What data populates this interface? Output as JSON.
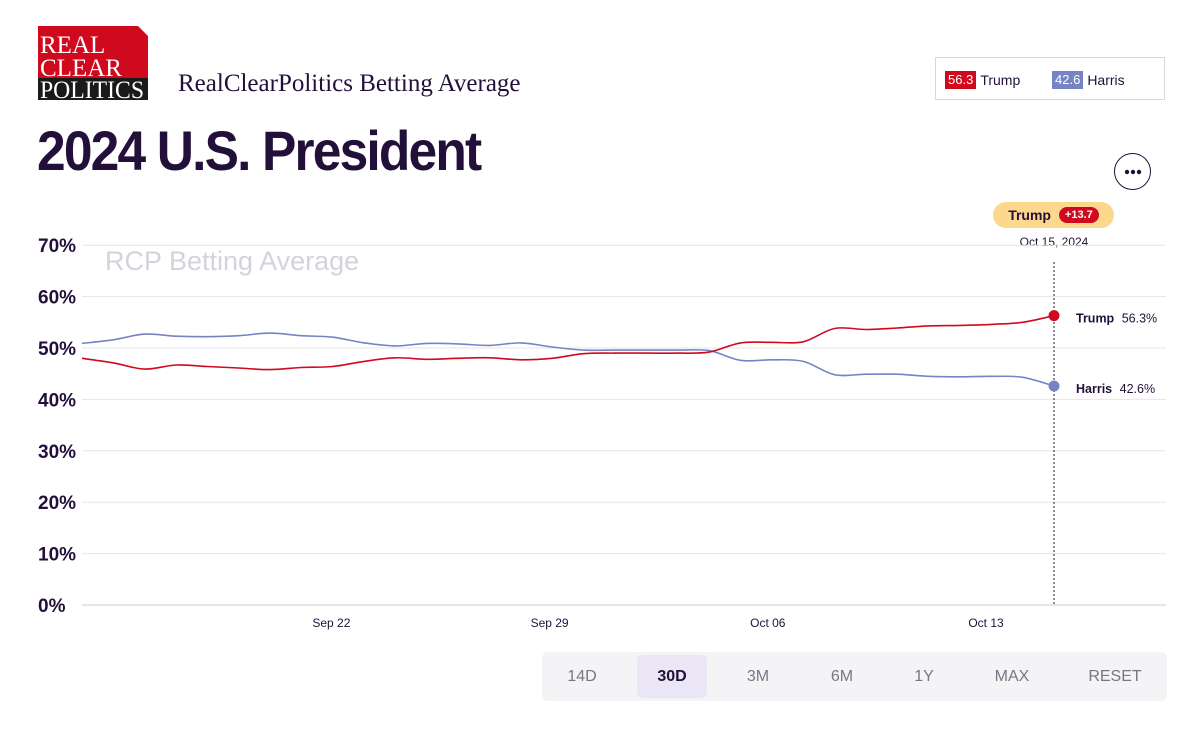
{
  "header": {
    "logo_lines": [
      "REAL",
      "CLEAR",
      "POLITICS"
    ],
    "subtitle": "RealClearPolitics Betting Average",
    "title": "2024 U.S. President"
  },
  "legend": {
    "trump": {
      "value": "56.3",
      "name": "Trump",
      "color": "#d00a1e"
    },
    "harris": {
      "value": "42.6",
      "name": "Harris",
      "color": "#7683c4"
    }
  },
  "more_icon": "ellipsis-icon",
  "tooltip": {
    "leader": "Trump",
    "spread": "+13.7",
    "date": "Oct 15, 2024"
  },
  "watermark": "RCP Betting Average",
  "chart_data": {
    "type": "line",
    "title": "2024 U.S. President",
    "subtitle": "RealClearPolitics Betting Average",
    "y_unit": "%",
    "ylim": [
      0,
      70
    ],
    "y_ticks": [
      "0%",
      "10%",
      "20%",
      "30%",
      "40%",
      "50%",
      "60%",
      "70%"
    ],
    "x_tick_labels": [
      "Sep 22",
      "Sep 29",
      "Oct 06",
      "Oct 13"
    ],
    "x": [
      "2024-09-14",
      "2024-09-15",
      "2024-09-16",
      "2024-09-17",
      "2024-09-18",
      "2024-09-19",
      "2024-09-20",
      "2024-09-21",
      "2024-09-22",
      "2024-09-23",
      "2024-09-24",
      "2024-09-25",
      "2024-09-26",
      "2024-09-27",
      "2024-09-28",
      "2024-09-29",
      "2024-09-30",
      "2024-10-01",
      "2024-10-02",
      "2024-10-03",
      "2024-10-04",
      "2024-10-05",
      "2024-10-06",
      "2024-10-07",
      "2024-10-08",
      "2024-10-09",
      "2024-10-10",
      "2024-10-11",
      "2024-10-12",
      "2024-10-13",
      "2024-10-14",
      "2024-10-15"
    ],
    "series": [
      {
        "name": "Trump",
        "color": "#d00a1e",
        "values": [
          48.0,
          47.1,
          45.9,
          46.7,
          46.4,
          46.1,
          45.8,
          46.2,
          46.4,
          47.4,
          48.1,
          47.8,
          48.0,
          48.1,
          47.7,
          48.0,
          48.9,
          49.0,
          49.0,
          49.0,
          49.2,
          51.0,
          51.1,
          51.2,
          53.8,
          53.6,
          53.9,
          54.3,
          54.4,
          54.6,
          55.0,
          56.3
        ]
      },
      {
        "name": "Harris",
        "color": "#7683c4",
        "values": [
          50.9,
          51.6,
          52.7,
          52.3,
          52.2,
          52.4,
          52.9,
          52.4,
          52.1,
          51.0,
          50.4,
          50.9,
          50.8,
          50.5,
          51.0,
          50.2,
          49.6,
          49.6,
          49.6,
          49.6,
          49.5,
          47.6,
          47.7,
          47.4,
          44.8,
          44.9,
          44.9,
          44.5,
          44.4,
          44.5,
          44.3,
          42.6
        ]
      }
    ],
    "end_labels": {
      "trump": {
        "name": "Trump",
        "value": "56.3%"
      },
      "harris": {
        "name": "Harris",
        "value": "42.6%"
      }
    },
    "grid": true,
    "legend_position": "top-right"
  },
  "range_buttons": [
    {
      "label": "14D",
      "active": false
    },
    {
      "label": "30D",
      "active": true
    },
    {
      "label": "3M",
      "active": false
    },
    {
      "label": "6M",
      "active": false
    },
    {
      "label": "1Y",
      "active": false
    },
    {
      "label": "MAX",
      "active": false
    },
    {
      "label": "RESET",
      "active": false
    }
  ]
}
